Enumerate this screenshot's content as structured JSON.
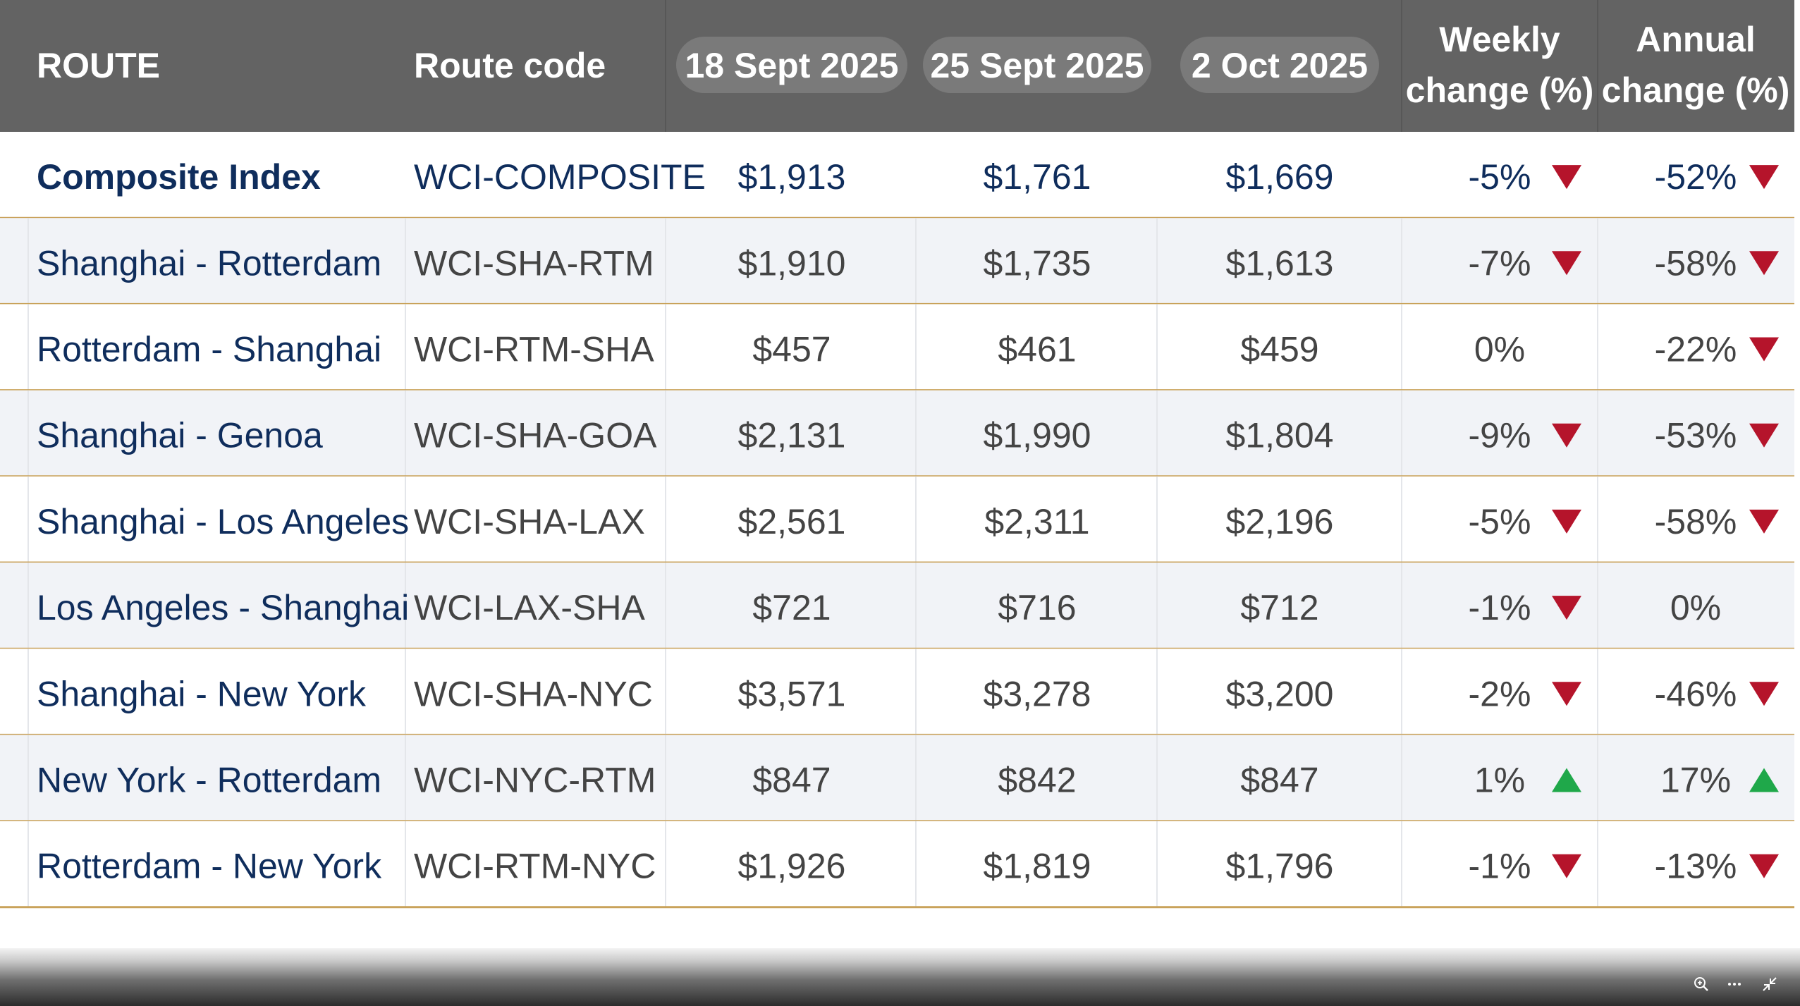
{
  "chart_data": {
    "type": "table",
    "columns": [
      "ROUTE",
      "Route code",
      "18 Sept 2025",
      "25 Sept 2025",
      "2 Oct 2025",
      "Weekly change (%)",
      "Annual change (%)"
    ],
    "header": {
      "route": "ROUTE",
      "code": "Route code",
      "dates": [
        "18 Sept 2025",
        "25 Sept 2025",
        "2 Oct 2025"
      ],
      "weekly": [
        "Weekly",
        "change (%)"
      ],
      "annual": [
        "Annual",
        "change (%)"
      ]
    },
    "rows": [
      {
        "route": "Composite Index",
        "code": "WCI-COMPOSITE",
        "values": [
          "$1,913",
          "$1,761",
          "$1,669"
        ],
        "weekly": "-5%",
        "weekly_dir": "down",
        "annual": "-52%",
        "annual_dir": "down",
        "highlight": true
      },
      {
        "route": "Shanghai - Rotterdam",
        "code": "WCI-SHA-RTM",
        "values": [
          "$1,910",
          "$1,735",
          "$1,613"
        ],
        "weekly": "-7%",
        "weekly_dir": "down",
        "annual": "-58%",
        "annual_dir": "down"
      },
      {
        "route": "Rotterdam - Shanghai",
        "code": "WCI-RTM-SHA",
        "values": [
          "$457",
          "$461",
          "$459"
        ],
        "weekly": "0%",
        "weekly_dir": "none",
        "annual": "-22%",
        "annual_dir": "down"
      },
      {
        "route": "Shanghai - Genoa",
        "code": "WCI-SHA-GOA",
        "values": [
          "$2,131",
          "$1,990",
          "$1,804"
        ],
        "weekly": "-9%",
        "weekly_dir": "down",
        "annual": "-53%",
        "annual_dir": "down"
      },
      {
        "route": "Shanghai - Los Angeles",
        "code": "WCI-SHA-LAX",
        "values": [
          "$2,561",
          "$2,311",
          "$2,196"
        ],
        "weekly": "-5%",
        "weekly_dir": "down",
        "annual": "-58%",
        "annual_dir": "down"
      },
      {
        "route": "Los Angeles - Shanghai",
        "code": "WCI-LAX-SHA",
        "values": [
          "$721",
          "$716",
          "$712"
        ],
        "weekly": "-1%",
        "weekly_dir": "down",
        "annual": "0%",
        "annual_dir": "none"
      },
      {
        "route": "Shanghai - New York",
        "code": "WCI-SHA-NYC",
        "values": [
          "$3,571",
          "$3,278",
          "$3,200"
        ],
        "weekly": "-2%",
        "weekly_dir": "down",
        "annual": "-46%",
        "annual_dir": "down"
      },
      {
        "route": "New York - Rotterdam",
        "code": "WCI-NYC-RTM",
        "values": [
          "$847",
          "$842",
          "$847"
        ],
        "weekly": "1%",
        "weekly_dir": "up",
        "annual": "17%",
        "annual_dir": "up"
      },
      {
        "route": "Rotterdam - New York",
        "code": "WCI-RTM-NYC",
        "values": [
          "$1,926",
          "$1,819",
          "$1,796"
        ],
        "weekly": "-1%",
        "weekly_dir": "down",
        "annual": "-13%",
        "annual_dir": "down"
      }
    ]
  },
  "colors": {
    "header_bg": "#636363",
    "header_text": "#ffffff",
    "date_pill_bg": "#7a7a7a",
    "row_alt_bg": "#f1f3f7",
    "row_bg": "#ffffff",
    "row_border": "#c9a25a",
    "route_text": "#0f2d5c",
    "cell_text": "#444444",
    "down_arrow": "#b5142b",
    "up_arrow": "#1fa84a"
  },
  "toolbar": {
    "icons": [
      "zoom-in-icon",
      "more-icon",
      "collapse-icon"
    ]
  }
}
